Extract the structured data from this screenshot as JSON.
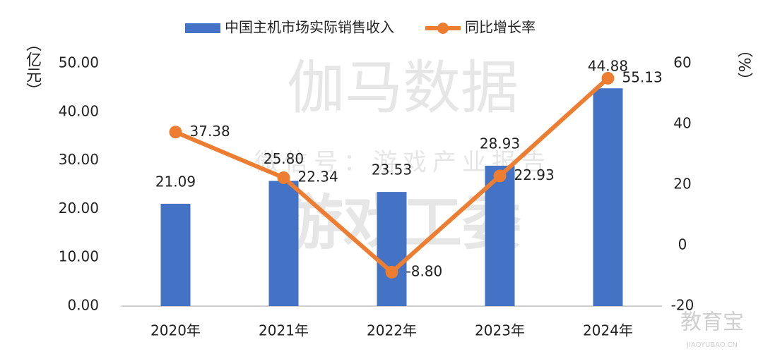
{
  "chart_data": {
    "type": "combo",
    "categories": [
      "2020年",
      "2021年",
      "2022年",
      "2023年",
      "2024年"
    ],
    "series": [
      {
        "name": "中国主机市场实际销售收入",
        "type": "bar",
        "color": "#4472c4",
        "axis": "y",
        "values": [
          21.09,
          25.8,
          23.53,
          28.93,
          44.88
        ],
        "value_labels": [
          "21.09",
          "25.80",
          "23.53",
          "28.93",
          "44.88"
        ]
      },
      {
        "name": "同比增长率",
        "type": "line",
        "color": "#ed7d31",
        "axis": "y2",
        "values": [
          37.38,
          22.34,
          -8.8,
          22.93,
          55.13
        ],
        "value_labels": [
          "37.38",
          "22.34",
          "-8.80",
          "22.93",
          "55.13"
        ]
      }
    ],
    "ylabel": "（亿元）",
    "y2label": "（%）",
    "ylim": [
      0,
      50
    ],
    "yticks": [
      {
        "value": 0,
        "label": "0.00"
      },
      {
        "value": 10,
        "label": "10.00"
      },
      {
        "value": 20,
        "label": "20.00"
      },
      {
        "value": 30,
        "label": "30.00"
      },
      {
        "value": 40,
        "label": "40.00"
      },
      {
        "value": 50,
        "label": "50.00"
      }
    ],
    "y2lim": [
      -20,
      60
    ],
    "y2ticks": [
      -20,
      0,
      20,
      40,
      60
    ],
    "legend": "top",
    "watermarks": [
      "伽马数据",
      "微信号：游戏产业报告",
      "游戏工委",
      "教育宝",
      "JIAOYUBAO.CN"
    ]
  }
}
